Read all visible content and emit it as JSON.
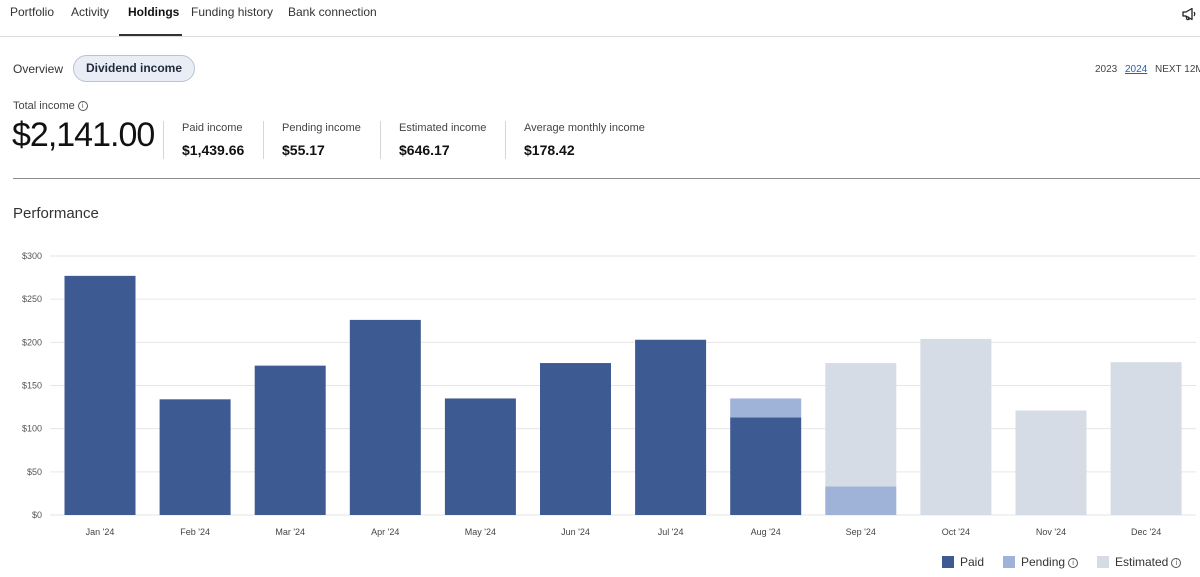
{
  "nav": {
    "tabs": [
      {
        "label": "Portfolio"
      },
      {
        "label": "Activity"
      },
      {
        "label": "Holdings",
        "active": true
      },
      {
        "label": "Funding history"
      },
      {
        "label": "Bank connection"
      }
    ],
    "notification_icon": "megaphone-icon"
  },
  "subnav": {
    "overview": "Overview",
    "dividend_income": "Dividend income"
  },
  "years": {
    "options": [
      "2023",
      "2024",
      "NEXT 12M"
    ],
    "selected": "2024"
  },
  "summary": {
    "total_label": "Total income",
    "total_value": "$2,141.00",
    "stats": [
      {
        "label": "Paid income",
        "value": "$1,439.66"
      },
      {
        "label": "Pending income",
        "value": "$55.17"
      },
      {
        "label": "Estimated income",
        "value": "$646.17"
      },
      {
        "label": "Average monthly income",
        "value": "$178.42"
      }
    ]
  },
  "performance": {
    "title": "Performance"
  },
  "legend": {
    "paid": "Paid",
    "pending": "Pending",
    "estimated": "Estimated"
  },
  "colors": {
    "paid": "#3d5a93",
    "pending": "#9fb2d8",
    "estimated": "#d6dce6",
    "grid": "#e6e6e6",
    "accent": "#2a5ea8"
  },
  "chart_data": {
    "type": "bar",
    "stacked": true,
    "title": "Performance",
    "categories": [
      "Jan '24",
      "Feb '24",
      "Mar '24",
      "Apr '24",
      "May '24",
      "Jun '24",
      "Jul '24",
      "Aug '24",
      "Sep '24",
      "Oct '24",
      "Nov '24",
      "Dec '24"
    ],
    "y_ticks": [
      "$0",
      "$50",
      "$100",
      "$150",
      "$200",
      "$250",
      "$300"
    ],
    "ylim": [
      0,
      300
    ],
    "grid": true,
    "legend_position": "bottom-right",
    "series": [
      {
        "name": "Paid",
        "values": [
          277,
          134,
          173,
          226,
          135,
          176,
          203,
          113,
          0,
          0,
          0,
          0
        ]
      },
      {
        "name": "Pending",
        "values": [
          0,
          0,
          0,
          0,
          0,
          0,
          0,
          22,
          33,
          0,
          0,
          0
        ]
      },
      {
        "name": "Estimated",
        "values": [
          0,
          0,
          0,
          0,
          0,
          0,
          0,
          0,
          143,
          204,
          121,
          177
        ]
      }
    ]
  }
}
